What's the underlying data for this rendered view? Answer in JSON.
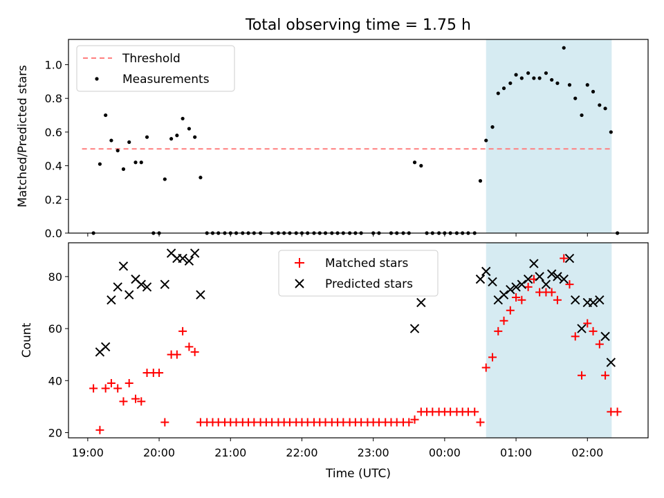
{
  "chart_data": {
    "title": "Total observing time = 1.75 h",
    "xlabel": "Time (UTC)",
    "x_ticks": [
      {
        "label": "19:00",
        "hours": 0
      },
      {
        "label": "20:00",
        "hours": 1
      },
      {
        "label": "21:00",
        "hours": 2
      },
      {
        "label": "22:00",
        "hours": 3
      },
      {
        "label": "23:00",
        "hours": 4
      },
      {
        "label": "00:00",
        "hours": 5
      },
      {
        "label": "01:00",
        "hours": 6
      },
      {
        "label": "02:00",
        "hours": 7
      }
    ],
    "x_unit": "hours after 19:00 UTC",
    "xlim": [
      -0.27,
      7.85
    ],
    "shaded_interval": {
      "start": 5.58,
      "end": 7.34,
      "color": "#add8e6"
    },
    "panels": [
      {
        "type": "scatter",
        "ylabel": "Matched/Predicted stars",
        "ylim": [
          0,
          1.15
        ],
        "y_ticks": [
          0.0,
          0.2,
          0.4,
          0.6,
          0.8,
          1.0
        ],
        "y_tick_labels": [
          "0.0",
          "0.2",
          "0.4",
          "0.6",
          "0.8",
          "1.0"
        ],
        "legend_position": "upper left",
        "threshold": {
          "name": "Threshold",
          "value": 0.5,
          "from": -0.08,
          "to": 7.34,
          "color": "#ff7f7f",
          "style": "dashed"
        },
        "series": [
          {
            "name": "Measurements",
            "marker": "dot",
            "color": "#000000",
            "points": [
              [
                0.08,
                0.0
              ],
              [
                0.17,
                0.41
              ],
              [
                0.25,
                0.7
              ],
              [
                0.33,
                0.55
              ],
              [
                0.42,
                0.49
              ],
              [
                0.5,
                0.38
              ],
              [
                0.58,
                0.54
              ],
              [
                0.67,
                0.42
              ],
              [
                0.75,
                0.42
              ],
              [
                0.83,
                0.57
              ],
              [
                0.92,
                0.0
              ],
              [
                1.0,
                0.0
              ],
              [
                1.08,
                0.32
              ],
              [
                1.17,
                0.56
              ],
              [
                1.25,
                0.58
              ],
              [
                1.33,
                0.68
              ],
              [
                1.42,
                0.62
              ],
              [
                1.5,
                0.57
              ],
              [
                1.58,
                0.33
              ],
              [
                1.67,
                0.0
              ],
              [
                1.75,
                0.0
              ],
              [
                1.83,
                0.0
              ],
              [
                1.92,
                0.0
              ],
              [
                2.0,
                0.0
              ],
              [
                2.08,
                0.0
              ],
              [
                2.17,
                0.0
              ],
              [
                2.25,
                0.0
              ],
              [
                2.33,
                0.0
              ],
              [
                2.42,
                0.0
              ],
              [
                2.58,
                0.0
              ],
              [
                2.67,
                0.0
              ],
              [
                2.75,
                0.0
              ],
              [
                2.83,
                0.0
              ],
              [
                2.92,
                0.0
              ],
              [
                3.0,
                0.0
              ],
              [
                3.08,
                0.0
              ],
              [
                3.17,
                0.0
              ],
              [
                3.25,
                0.0
              ],
              [
                3.33,
                0.0
              ],
              [
                3.42,
                0.0
              ],
              [
                3.5,
                0.0
              ],
              [
                3.58,
                0.0
              ],
              [
                3.67,
                0.0
              ],
              [
                3.75,
                0.0
              ],
              [
                3.83,
                0.0
              ],
              [
                4.0,
                0.0
              ],
              [
                4.08,
                0.0
              ],
              [
                4.25,
                0.0
              ],
              [
                4.33,
                0.0
              ],
              [
                4.42,
                0.0
              ],
              [
                4.5,
                0.0
              ],
              [
                4.58,
                0.42
              ],
              [
                4.67,
                0.4
              ],
              [
                4.75,
                0.0
              ],
              [
                4.83,
                0.0
              ],
              [
                4.92,
                0.0
              ],
              [
                5.0,
                0.0
              ],
              [
                5.08,
                0.0
              ],
              [
                5.17,
                0.0
              ],
              [
                5.25,
                0.0
              ],
              [
                5.33,
                0.0
              ],
              [
                5.42,
                0.0
              ],
              [
                5.5,
                0.31
              ],
              [
                5.58,
                0.55
              ],
              [
                5.67,
                0.63
              ],
              [
                5.75,
                0.83
              ],
              [
                5.83,
                0.86
              ],
              [
                5.92,
                0.89
              ],
              [
                6.0,
                0.94
              ],
              [
                6.08,
                0.92
              ],
              [
                6.17,
                0.95
              ],
              [
                6.25,
                0.92
              ],
              [
                6.33,
                0.92
              ],
              [
                6.42,
                0.95
              ],
              [
                6.5,
                0.91
              ],
              [
                6.58,
                0.89
              ],
              [
                6.67,
                1.1
              ],
              [
                6.75,
                0.88
              ],
              [
                6.83,
                0.8
              ],
              [
                6.92,
                0.7
              ],
              [
                7.0,
                0.88
              ],
              [
                7.08,
                0.84
              ],
              [
                7.17,
                0.76
              ],
              [
                7.25,
                0.74
              ],
              [
                7.33,
                0.6
              ],
              [
                7.42,
                0.0
              ]
            ]
          }
        ]
      },
      {
        "type": "scatter",
        "ylabel": "Count",
        "ylim": [
          18,
          93
        ],
        "y_ticks": [
          20,
          40,
          60,
          80
        ],
        "y_tick_labels": [
          "20",
          "40",
          "60",
          "80"
        ],
        "legend_position": "upper center",
        "series": [
          {
            "name": "Matched stars",
            "marker": "plus",
            "color": "#ff0000",
            "points": [
              [
                0.08,
                37
              ],
              [
                0.17,
                21
              ],
              [
                0.25,
                37
              ],
              [
                0.33,
                39
              ],
              [
                0.42,
                37
              ],
              [
                0.5,
                32
              ],
              [
                0.58,
                39
              ],
              [
                0.67,
                33
              ],
              [
                0.75,
                32
              ],
              [
                0.83,
                43
              ],
              [
                0.92,
                43
              ],
              [
                1.0,
                43
              ],
              [
                1.08,
                24
              ],
              [
                1.17,
                50
              ],
              [
                1.25,
                50
              ],
              [
                1.33,
                59
              ],
              [
                1.42,
                53
              ],
              [
                1.5,
                51
              ],
              [
                1.58,
                24
              ],
              [
                1.67,
                24
              ],
              [
                1.75,
                24
              ],
              [
                1.83,
                24
              ],
              [
                1.92,
                24
              ],
              [
                2.0,
                24
              ],
              [
                2.08,
                24
              ],
              [
                2.17,
                24
              ],
              [
                2.25,
                24
              ],
              [
                2.33,
                24
              ],
              [
                2.42,
                24
              ],
              [
                2.5,
                24
              ],
              [
                2.58,
                24
              ],
              [
                2.67,
                24
              ],
              [
                2.75,
                24
              ],
              [
                2.83,
                24
              ],
              [
                2.92,
                24
              ],
              [
                3.0,
                24
              ],
              [
                3.08,
                24
              ],
              [
                3.17,
                24
              ],
              [
                3.25,
                24
              ],
              [
                3.33,
                24
              ],
              [
                3.42,
                24
              ],
              [
                3.5,
                24
              ],
              [
                3.58,
                24
              ],
              [
                3.67,
                24
              ],
              [
                3.75,
                24
              ],
              [
                3.83,
                24
              ],
              [
                3.92,
                24
              ],
              [
                4.0,
                24
              ],
              [
                4.08,
                24
              ],
              [
                4.17,
                24
              ],
              [
                4.25,
                24
              ],
              [
                4.33,
                24
              ],
              [
                4.42,
                24
              ],
              [
                4.5,
                24
              ],
              [
                4.58,
                25
              ],
              [
                4.67,
                28
              ],
              [
                4.75,
                28
              ],
              [
                4.83,
                28
              ],
              [
                4.92,
                28
              ],
              [
                5.0,
                28
              ],
              [
                5.08,
                28
              ],
              [
                5.17,
                28
              ],
              [
                5.25,
                28
              ],
              [
                5.33,
                28
              ],
              [
                5.42,
                28
              ],
              [
                5.5,
                24
              ],
              [
                5.58,
                45
              ],
              [
                5.67,
                49
              ],
              [
                5.75,
                59
              ],
              [
                5.83,
                63
              ],
              [
                5.92,
                67
              ],
              [
                6.0,
                72
              ],
              [
                6.08,
                71
              ],
              [
                6.17,
                76
              ],
              [
                6.25,
                79
              ],
              [
                6.33,
                74
              ],
              [
                6.42,
                74
              ],
              [
                6.5,
                74
              ],
              [
                6.58,
                71
              ],
              [
                6.67,
                87
              ],
              [
                6.75,
                77
              ],
              [
                6.83,
                57
              ],
              [
                6.92,
                42
              ],
              [
                7.0,
                62
              ],
              [
                7.08,
                59
              ],
              [
                7.17,
                54
              ],
              [
                7.25,
                42
              ],
              [
                7.33,
                28
              ],
              [
                7.42,
                28
              ]
            ]
          },
          {
            "name": "Predicted stars",
            "marker": "x",
            "color": "#000000",
            "points": [
              [
                0.17,
                51
              ],
              [
                0.25,
                53
              ],
              [
                0.33,
                71
              ],
              [
                0.42,
                76
              ],
              [
                0.5,
                84
              ],
              [
                0.58,
                73
              ],
              [
                0.67,
                79
              ],
              [
                0.75,
                77
              ],
              [
                0.83,
                76
              ],
              [
                1.08,
                77
              ],
              [
                1.17,
                89
              ],
              [
                1.25,
                87
              ],
              [
                1.33,
                87
              ],
              [
                1.42,
                86
              ],
              [
                1.5,
                89
              ],
              [
                1.58,
                73
              ],
              [
                4.58,
                60
              ],
              [
                4.67,
                70
              ],
              [
                5.5,
                79
              ],
              [
                5.58,
                82
              ],
              [
                5.67,
                78
              ],
              [
                5.75,
                71
              ],
              [
                5.83,
                73
              ],
              [
                5.92,
                75
              ],
              [
                6.0,
                76
              ],
              [
                6.08,
                77
              ],
              [
                6.17,
                79
              ],
              [
                6.25,
                85
              ],
              [
                6.33,
                80
              ],
              [
                6.42,
                77
              ],
              [
                6.5,
                81
              ],
              [
                6.58,
                80
              ],
              [
                6.67,
                79
              ],
              [
                6.75,
                87
              ],
              [
                6.83,
                71
              ],
              [
                6.92,
                60
              ],
              [
                7.0,
                70
              ],
              [
                7.08,
                70
              ],
              [
                7.17,
                71
              ],
              [
                7.25,
                57
              ],
              [
                7.33,
                47
              ]
            ]
          }
        ]
      }
    ]
  }
}
